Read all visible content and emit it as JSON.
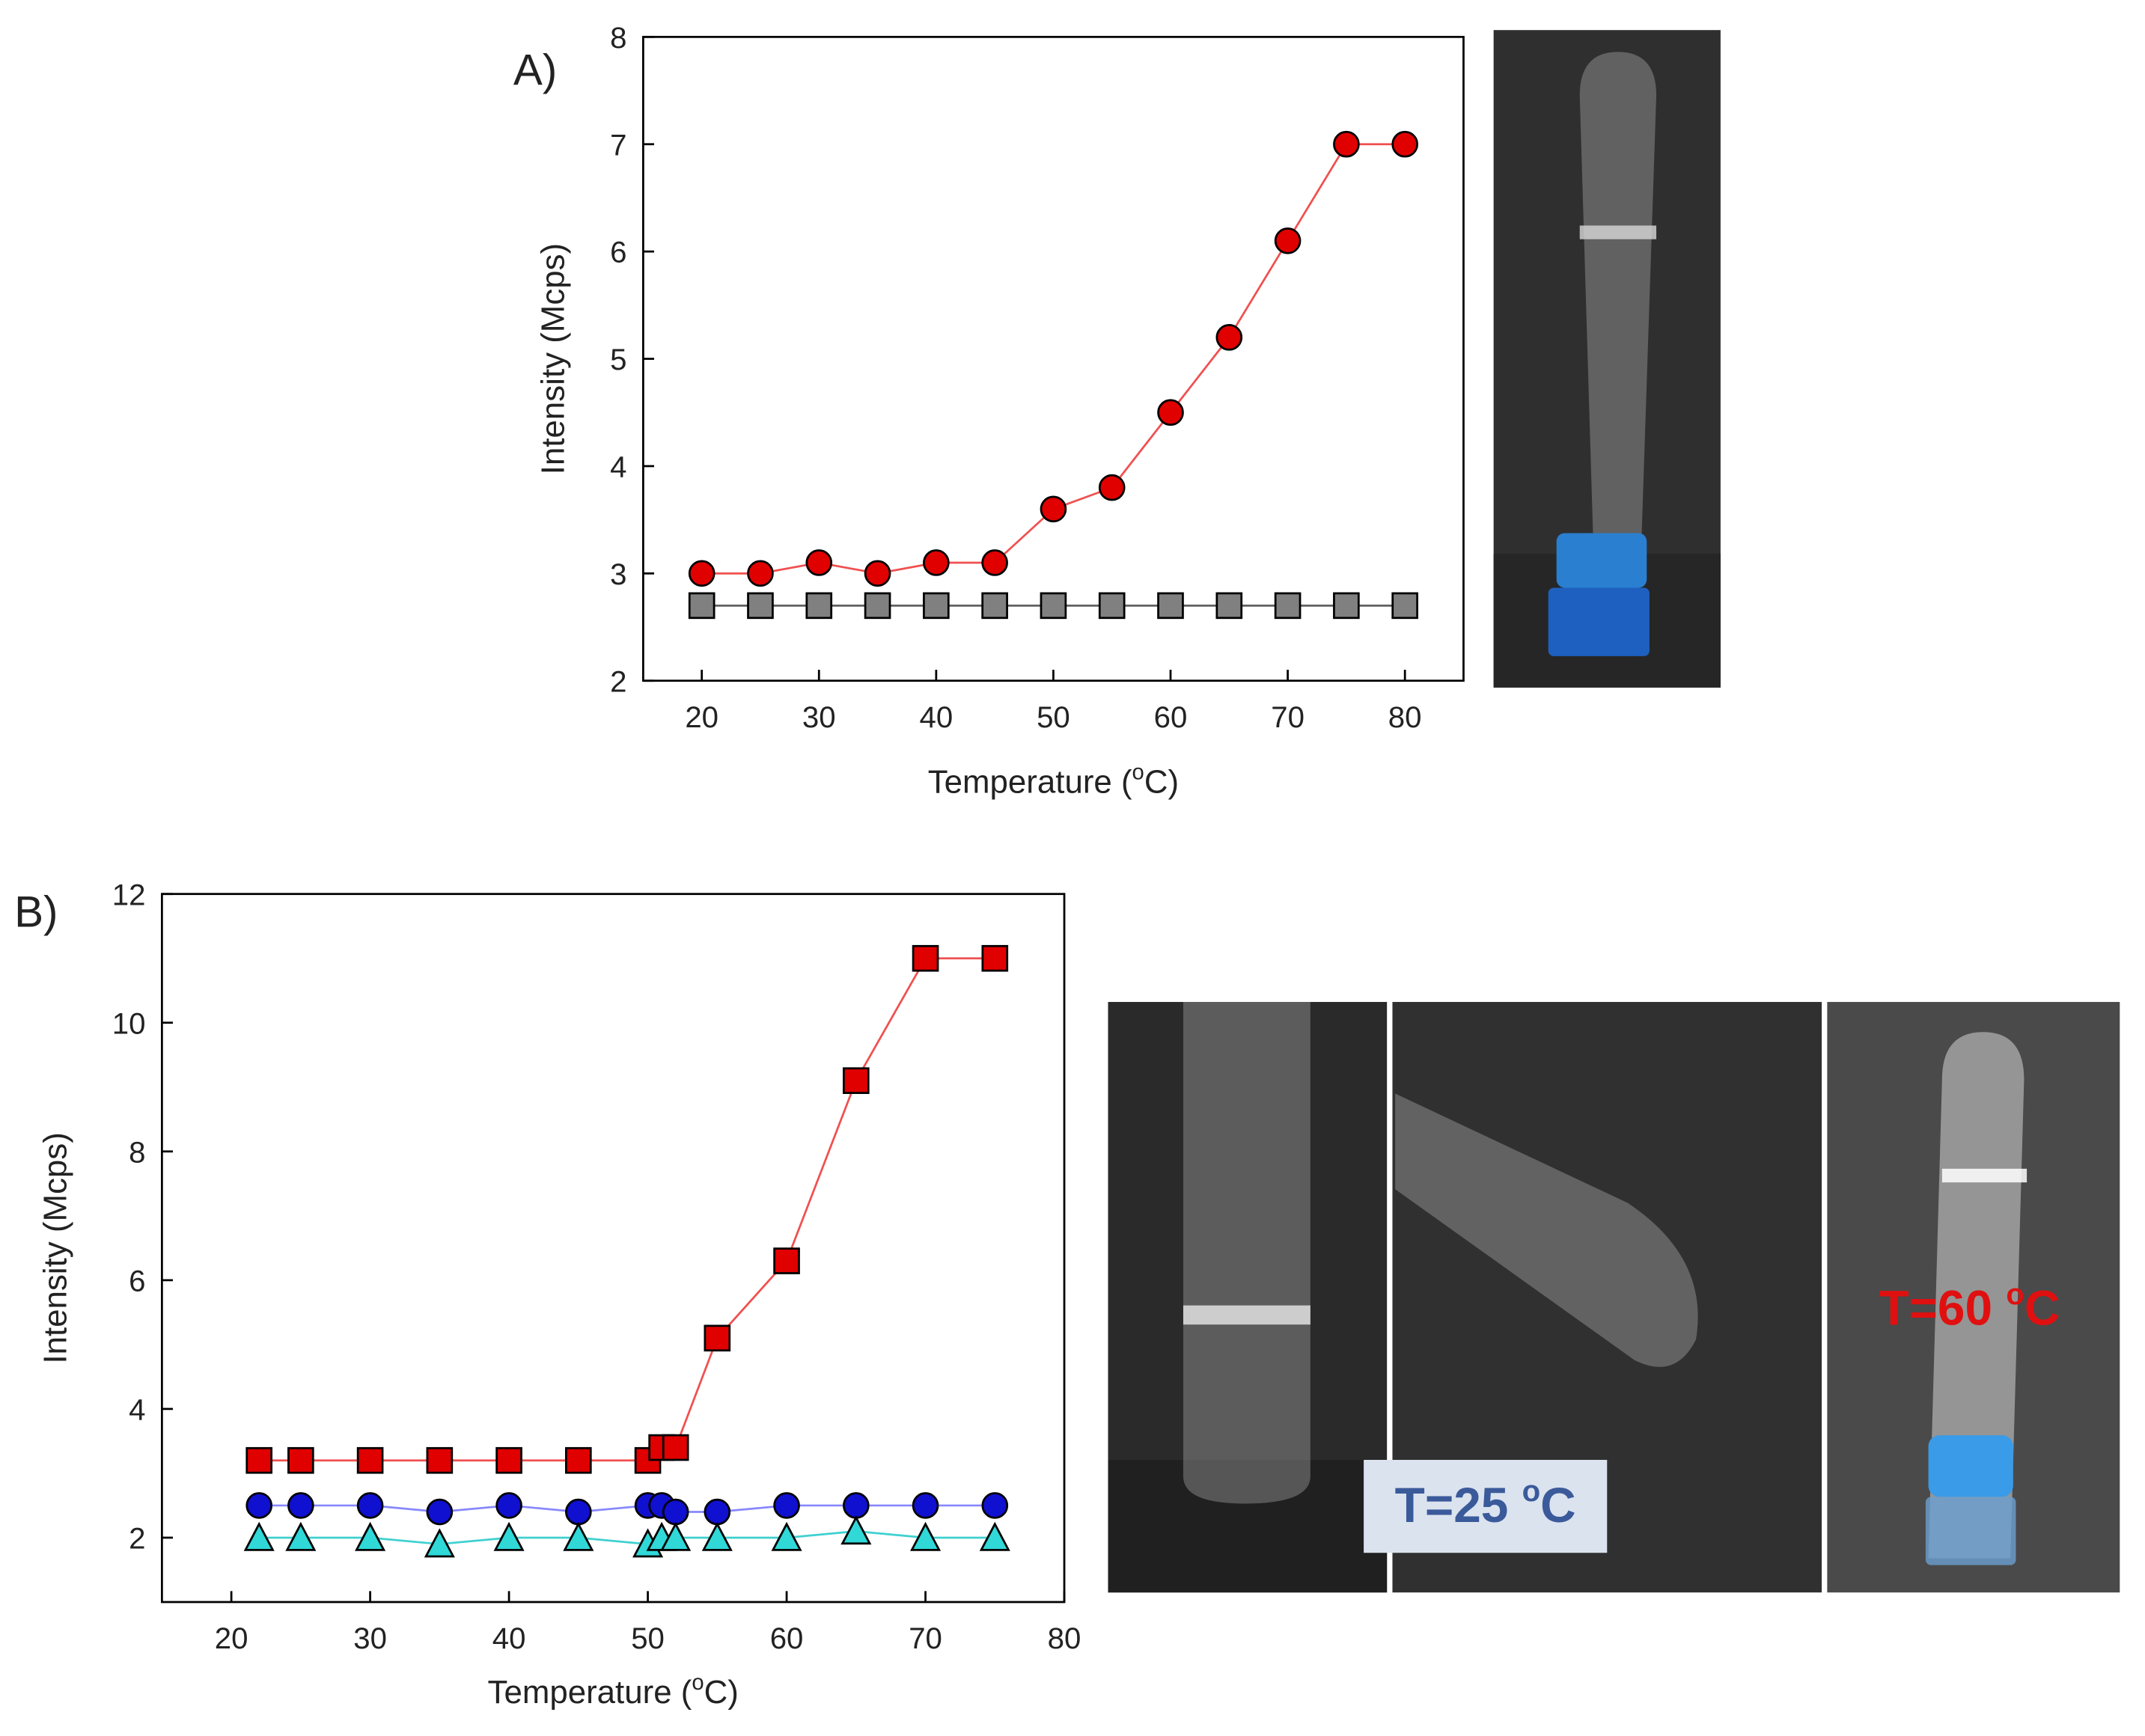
{
  "chart_data": [
    {
      "type": "line",
      "panel_label": "A)",
      "x_label": [
        "Temperature (",
        "o",
        "C)"
      ],
      "y_label": "Intensity (Mcps)",
      "x": [
        20,
        25,
        30,
        35,
        40,
        45,
        50,
        55,
        60,
        65,
        70,
        75,
        80
      ],
      "series": [
        {
          "color": "#e00000",
          "line_color": "#f05050",
          "marker": "circle",
          "values": [
            3,
            3,
            3.1,
            3,
            3.1,
            3.1,
            3.6,
            3.8,
            4.5,
            5.2,
            6.1,
            7,
            7
          ]
        },
        {
          "color": "#808080",
          "line_color": "#606060",
          "marker": "square",
          "values": [
            2.7,
            2.7,
            2.7,
            2.7,
            2.7,
            2.7,
            2.7,
            2.7,
            2.7,
            2.7,
            2.7,
            2.7,
            2.7
          ]
        }
      ],
      "xlim": [
        15,
        85
      ],
      "xticks": [
        20,
        30,
        40,
        50,
        60,
        70,
        80
      ],
      "ylim": [
        2,
        8
      ],
      "yticks": [
        2,
        3,
        4,
        5,
        6,
        7,
        8
      ]
    },
    {
      "type": "line",
      "panel_label": "B)",
      "x_label": [
        "Temperature (",
        "o",
        "C)"
      ],
      "y_label": "Intensity (Mcps)",
      "x": [
        22,
        25,
        30,
        35,
        40,
        45,
        50,
        51,
        52,
        55,
        60,
        65,
        70,
        75
      ],
      "series": [
        {
          "color": "#e00000",
          "line_color": "#f05050",
          "marker": "square",
          "values": [
            3.2,
            3.2,
            3.2,
            3.2,
            3.2,
            3.2,
            3.2,
            3.4,
            3.4,
            5.1,
            6.3,
            9.1,
            11,
            11
          ]
        },
        {
          "color": "#1010d0",
          "line_color": "#8888ff",
          "marker": "circle",
          "values": [
            2.5,
            2.5,
            2.5,
            2.4,
            2.5,
            2.4,
            2.5,
            2.5,
            2.4,
            2.4,
            2.5,
            2.5,
            2.5,
            2.5
          ]
        },
        {
          "color": "#30d8d8",
          "line_color": "#40d0d0",
          "marker": "triangle",
          "values": [
            2.0,
            2.0,
            2.0,
            1.9,
            2.0,
            2.0,
            1.9,
            2.0,
            2.0,
            2.0,
            2.0,
            2.1,
            2.0,
            2.0
          ]
        }
      ],
      "xlim": [
        15,
        80
      ],
      "xticks": [
        20,
        30,
        40,
        50,
        60,
        70,
        80
      ],
      "ylim": [
        1,
        12
      ],
      "yticks": [
        2,
        4,
        6,
        8,
        10,
        12
      ]
    }
  ],
  "photo_labels": [
    {
      "text": [
        "T=25 ",
        "o",
        "C"
      ]
    },
    {
      "text": [
        "T=60 ",
        "o",
        "C"
      ]
    }
  ]
}
